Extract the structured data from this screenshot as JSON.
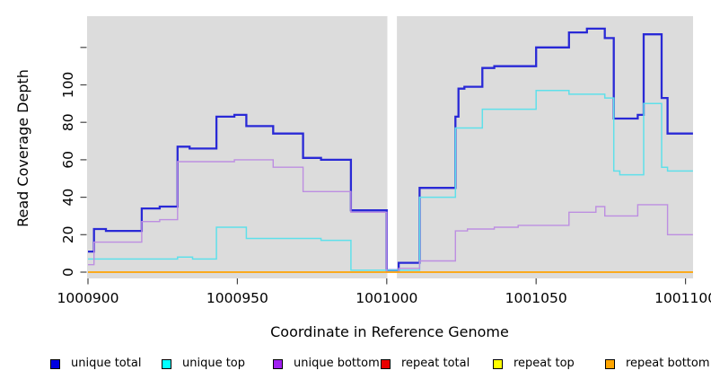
{
  "figure": {
    "plot_background": "#dcdcdc",
    "page_background": "#ffffff",
    "tick_color": "#454545",
    "text_color": "#000000"
  },
  "chart_data": {
    "type": "line",
    "step_style": "post",
    "title": "",
    "xlabel": "Coordinate in Reference Genome",
    "ylabel": "Read Coverage Depth",
    "xlim": [
      1000900,
      1001102.5
    ],
    "ylim": [
      0,
      136
    ],
    "grid": false,
    "legend_position": "bottom",
    "x_ticks": [
      {
        "value": 1000900,
        "label": "1000900"
      },
      {
        "value": 1000950,
        "label": "1000950"
      },
      {
        "value": 1001000,
        "label": "1001000"
      },
      {
        "value": 1001050,
        "label": "1001050"
      },
      {
        "value": 1001100,
        "label": "1001100"
      }
    ],
    "y_ticks": [
      {
        "value": 0,
        "label": "0"
      },
      {
        "value": 20,
        "label": "20"
      },
      {
        "value": 40,
        "label": "40"
      },
      {
        "value": 60,
        "label": "60"
      },
      {
        "value": 80,
        "label": "80"
      },
      {
        "value": 100,
        "label": "100"
      },
      {
        "value": 120,
        "label": ""
      }
    ],
    "masked_region": {
      "from": 1001000.2,
      "to": 1001003.4,
      "color": "#ffffff"
    },
    "series": [
      {
        "name": "unique total",
        "key_color": "#0000e1",
        "line_color": "#2929d6",
        "line_width": 2.3,
        "points": [
          [
            1000900,
            11
          ],
          [
            1000902,
            23
          ],
          [
            1000906,
            22
          ],
          [
            1000918,
            34
          ],
          [
            1000924,
            35
          ],
          [
            1000930,
            67
          ],
          [
            1000934,
            66
          ],
          [
            1000943,
            83
          ],
          [
            1000949,
            84
          ],
          [
            1000953,
            78
          ],
          [
            1000962,
            74
          ],
          [
            1000972,
            61
          ],
          [
            1000978,
            60
          ],
          [
            1000988,
            33
          ],
          [
            1001000,
            1
          ],
          [
            1001004,
            5
          ],
          [
            1001011,
            45
          ],
          [
            1001023,
            83
          ],
          [
            1001024,
            98
          ],
          [
            1001026,
            99
          ],
          [
            1001032,
            109
          ],
          [
            1001036,
            110
          ],
          [
            1001050,
            120
          ],
          [
            1001061,
            128
          ],
          [
            1001067,
            130
          ],
          [
            1001073,
            125
          ],
          [
            1001076,
            82
          ],
          [
            1001084,
            84
          ],
          [
            1001086,
            127
          ],
          [
            1001092,
            93
          ],
          [
            1001094,
            74
          ],
          [
            1001102,
            74
          ]
        ]
      },
      {
        "name": "unique top",
        "key_color": "#00ffff",
        "line_color": "#5fe0ea",
        "line_width": 1.5,
        "points": [
          [
            1000900,
            7
          ],
          [
            1000930,
            8
          ],
          [
            1000935,
            7
          ],
          [
            1000943,
            24
          ],
          [
            1000953,
            18
          ],
          [
            1000978,
            17
          ],
          [
            1000988,
            1
          ],
          [
            1001011,
            40
          ],
          [
            1001023,
            77
          ],
          [
            1001032,
            87
          ],
          [
            1001050,
            97
          ],
          [
            1001061,
            95
          ],
          [
            1001073,
            93
          ],
          [
            1001076,
            54
          ],
          [
            1001078,
            52
          ],
          [
            1001086,
            90
          ],
          [
            1001092,
            56
          ],
          [
            1001094,
            54
          ],
          [
            1001102,
            54
          ]
        ]
      },
      {
        "name": "unique bottom",
        "key_color": "#a020f0",
        "line_color": "#bd8ee1",
        "line_width": 1.4,
        "points": [
          [
            1000900,
            4
          ],
          [
            1000902,
            16
          ],
          [
            1000918,
            27
          ],
          [
            1000924,
            28
          ],
          [
            1000930,
            59
          ],
          [
            1000949,
            60
          ],
          [
            1000962,
            56
          ],
          [
            1000972,
            43
          ],
          [
            1000988,
            32
          ],
          [
            1001000,
            0
          ],
          [
            1001004,
            2
          ],
          [
            1001011,
            6
          ],
          [
            1001023,
            22
          ],
          [
            1001027,
            23
          ],
          [
            1001036,
            24
          ],
          [
            1001044,
            25
          ],
          [
            1001061,
            32
          ],
          [
            1001070,
            35
          ],
          [
            1001073,
            30
          ],
          [
            1001084,
            36
          ],
          [
            1001094,
            20
          ],
          [
            1001102,
            20
          ]
        ]
      },
      {
        "name": "repeat total",
        "key_color": "#ea0000",
        "line_color": "#ea0000",
        "line_width": 1.2,
        "points": [
          [
            1000900,
            0
          ],
          [
            1001102,
            0
          ]
        ]
      },
      {
        "name": "repeat top",
        "key_color": "#ffff00",
        "line_color": "#ffff00",
        "line_width": 1.2,
        "points": [
          [
            1000900,
            0
          ],
          [
            1001102,
            0
          ]
        ]
      },
      {
        "name": "repeat bottom",
        "key_color": "#ffa500",
        "line_color": "#ffa500",
        "line_width": 1.6,
        "points": [
          [
            1000900,
            0
          ],
          [
            1001102,
            0
          ]
        ]
      }
    ]
  }
}
